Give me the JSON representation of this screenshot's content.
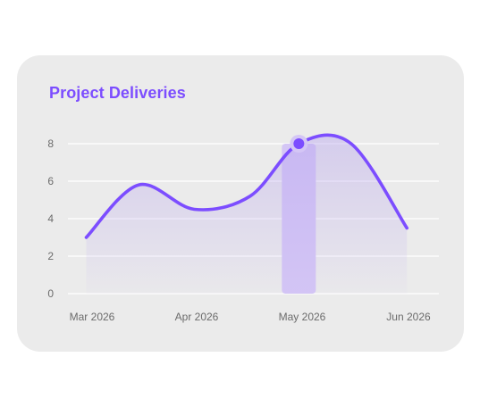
{
  "chart_data": {
    "type": "area",
    "title": "Project Deliveries",
    "xlabel": "",
    "ylabel": "",
    "ylim": [
      0,
      8
    ],
    "yticks": [
      0,
      2,
      4,
      6,
      8
    ],
    "categories": [
      "Mar 2026",
      "Apr 2026",
      "May 2026",
      "Jun 2026"
    ],
    "series": [
      {
        "x": [
          "2026-03-01",
          "2026-03-16",
          "2026-04-01",
          "2026-04-17",
          "2026-05-01",
          "2026-05-16",
          "2026-06-01"
        ],
        "values": [
          3.0,
          5.8,
          4.5,
          5.2,
          8.0,
          8.0,
          3.5
        ]
      }
    ],
    "highlight": {
      "x": "2026-05-01",
      "value": 8.0
    },
    "grid": true,
    "colors": {
      "line": "#7c4dff",
      "area_top": "#b9a6ef",
      "highlight_bar": "#d4c6f5",
      "grid": "#ffffff"
    }
  }
}
